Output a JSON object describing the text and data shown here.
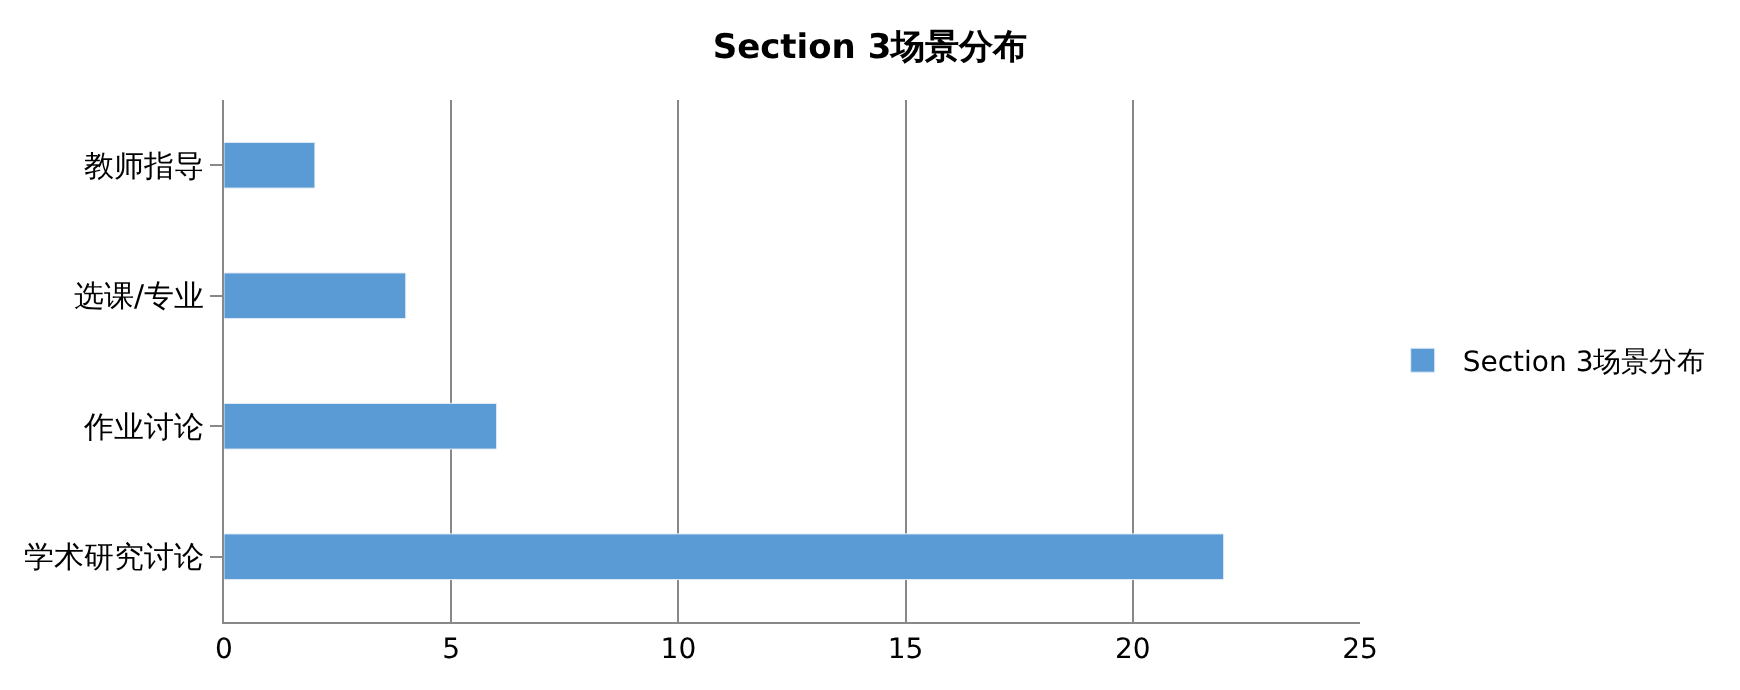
{
  "chart_data": {
    "type": "bar",
    "orientation": "horizontal",
    "title": "Section 3场景分布",
    "categories": [
      "教师指导",
      "选课/专业",
      "作业讨论",
      "学术研究讨论"
    ],
    "series": [
      {
        "name": "Section 3场景分布",
        "color": "#5b9bd5",
        "values": [
          2,
          4,
          6,
          22
        ]
      }
    ],
    "xlim": [
      0,
      25
    ],
    "xticks": [
      0,
      5,
      10,
      15,
      20,
      25
    ],
    "grid": "x",
    "legend": "right"
  }
}
